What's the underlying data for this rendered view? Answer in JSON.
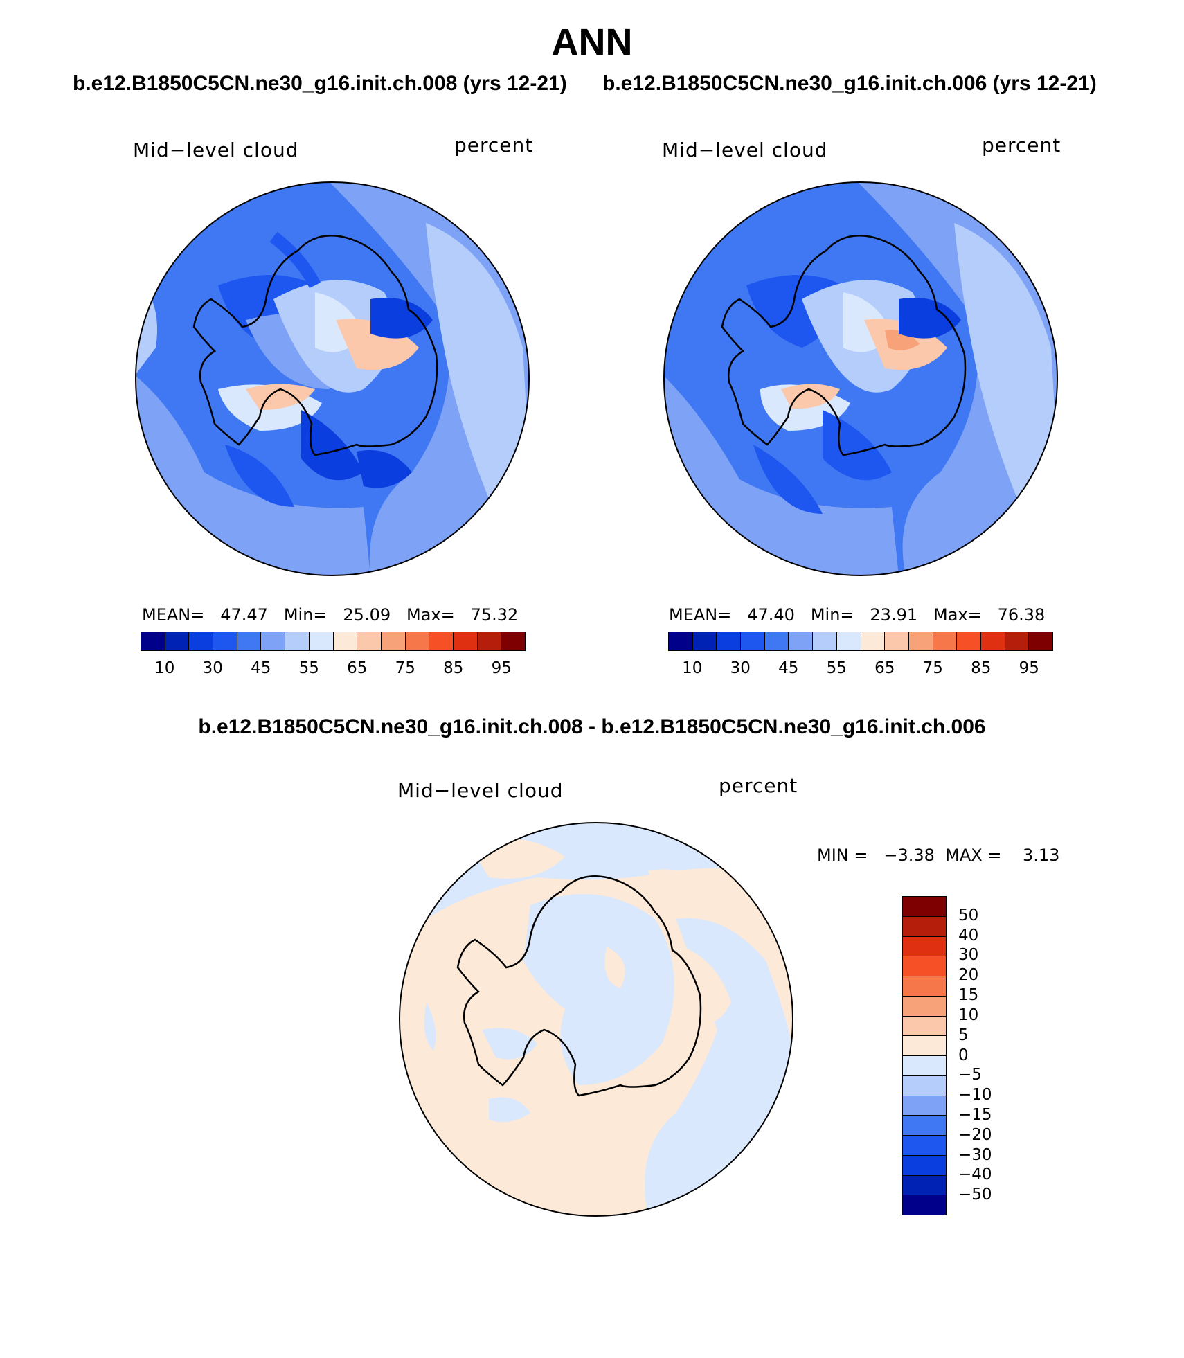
{
  "title": "ANN",
  "subtitle_left": "b.e12.B1850C5CN.ne30_g16.init.ch.008 (yrs 12-21)",
  "subtitle_right": "b.e12.B1850C5CN.ne30_g16.init.ch.006 (yrs 12-21)",
  "diff_title": "b.e12.B1850C5CN.ne30_g16.init.ch.008 - b.e12.B1850C5CN.ne30_g16.init.ch.006",
  "panels": [
    {
      "variable": "Mid−level cloud",
      "units": "percent",
      "stats": "MEAN=   47.47   Min=   25.09   Max=   75.32"
    },
    {
      "variable": "Mid−level cloud",
      "units": "percent",
      "stats": "MEAN=   47.40   Min=   23.91   Max=   76.38"
    }
  ],
  "diff_panel": {
    "variable": "Mid−level cloud",
    "units": "percent",
    "stats": "MIN =   −3.38  MAX =    3.13"
  },
  "colorbar_abs": {
    "ticks": [
      "10",
      "30",
      "45",
      "55",
      "65",
      "75",
      "85",
      "95"
    ],
    "colors": [
      "#00008a",
      "#0022b4",
      "#0a3ede",
      "#1e56f0",
      "#3f78f2",
      "#7ea3f6",
      "#b5cdfb",
      "#dae8fd",
      "#fde9d8",
      "#fcc8ab",
      "#f8a27a",
      "#f6784a",
      "#f55026",
      "#e03012",
      "#b41e0a",
      "#7e0000"
    ]
  },
  "colorbar_diff": {
    "ticks": [
      "50",
      "40",
      "30",
      "20",
      "15",
      "10",
      "5",
      "0",
      "−5",
      "−10",
      "−15",
      "−20",
      "−30",
      "−40",
      "−50"
    ],
    "colors": [
      "#7e0000",
      "#b41e0a",
      "#e03012",
      "#f55026",
      "#f6784a",
      "#f8a27a",
      "#fcc8ab",
      "#fde9d8",
      "#dae8fd",
      "#b5cdfb",
      "#7ea3f6",
      "#3f78f2",
      "#1e56f0",
      "#0a3ede",
      "#0022b4",
      "#00008a"
    ]
  },
  "colors": {
    "ocean_abs": "#5f8ef0",
    "diff_pos": "#fde9d8",
    "diff_neg": "#dae8fd"
  }
}
